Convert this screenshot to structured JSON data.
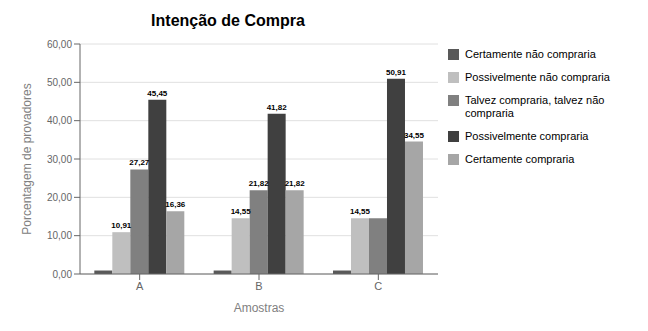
{
  "chart_data": {
    "type": "bar",
    "title": "Intenção de Compra",
    "xlabel": "Amostras",
    "ylabel": "Porcentagem de provadores",
    "categories": [
      "A",
      "B",
      "C"
    ],
    "series": [
      {
        "name": "Certamente não compraria",
        "color": "#595959",
        "values": [
          0.91,
          0.91,
          0.91
        ]
      },
      {
        "name": "Possivelmente não compraria",
        "color": "#bfbfbf",
        "values": [
          10.91,
          14.55,
          14.55
        ],
        "value_labels": [
          "10,91",
          "14,55",
          "14,55"
        ]
      },
      {
        "name": "Talvez compraria, talvez não\ncompraria",
        "color": "#808080",
        "values": [
          27.27,
          21.82,
          14.55
        ],
        "value_labels": [
          "27,27",
          "21,82",
          null
        ]
      },
      {
        "name": "Possivelmente compraria",
        "color": "#404040",
        "values": [
          45.45,
          41.82,
          50.91
        ],
        "value_labels": [
          "45,45",
          "41,82",
          "50,91"
        ]
      },
      {
        "name": "Certamente compraria",
        "color": "#a6a6a6",
        "values": [
          16.36,
          21.82,
          34.55
        ],
        "value_labels": [
          "16,36",
          "21,82",
          "34,55"
        ]
      }
    ],
    "ylim": [
      0,
      60
    ],
    "yticks": [
      {
        "value": 0,
        "label": "0,00"
      },
      {
        "value": 10,
        "label": "10,00"
      },
      {
        "value": 20,
        "label": "20,00"
      },
      {
        "value": 30,
        "label": "30,00"
      },
      {
        "value": 40,
        "label": "40,00"
      },
      {
        "value": 50,
        "label": "50,00"
      },
      {
        "value": 60,
        "label": "60,00"
      }
    ],
    "grid": true,
    "legend": "right",
    "data_labels": true
  }
}
